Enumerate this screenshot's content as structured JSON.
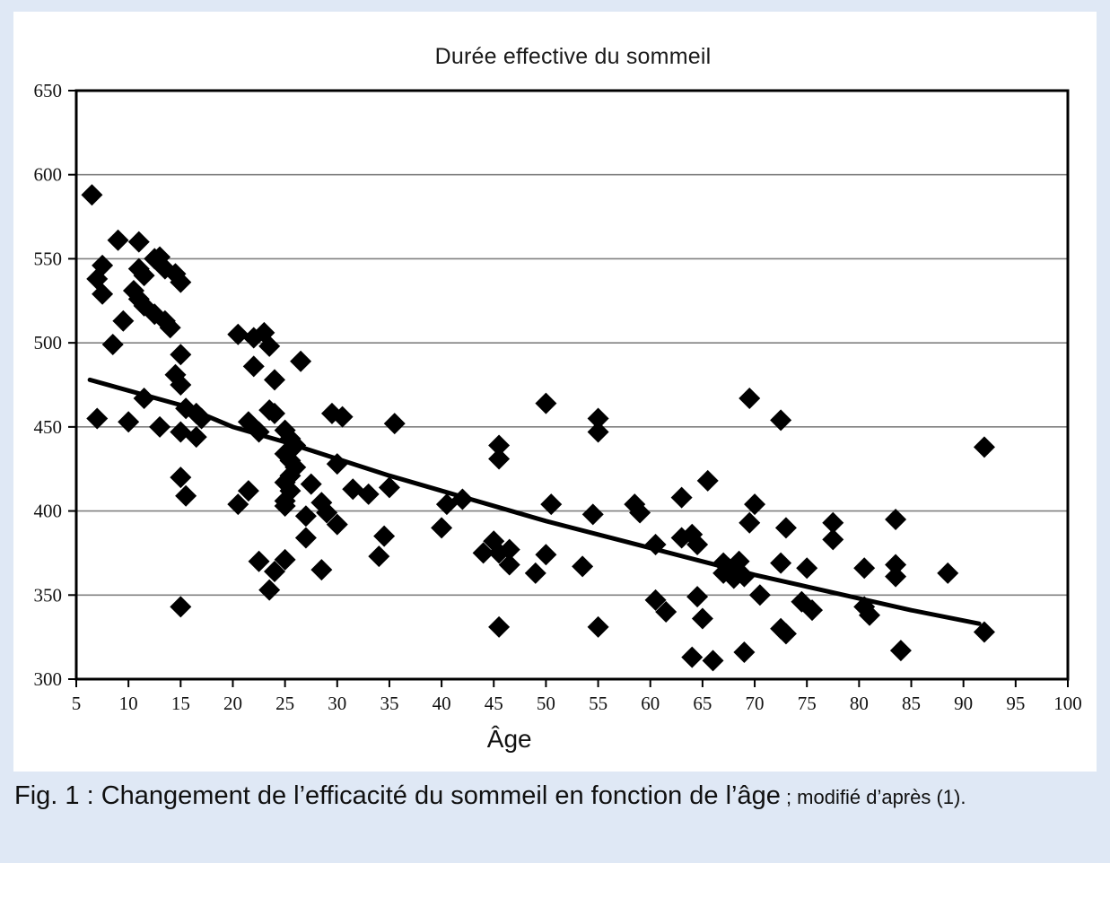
{
  "page": {
    "background_color": "#ffffff",
    "band_color": "#dfe8f5",
    "panel_color": "#ffffff"
  },
  "figure": {
    "title": "Durée effective du sommeil",
    "caption_main": "Fig. 1 : Changement de l’efficacité du sommeil en fonction de l’âge",
    "caption_suffix": " ; modifié d’après (1)."
  },
  "chart_data": {
    "type": "scatter",
    "title": "Durée effective du sommeil",
    "xlabel": "Âge",
    "ylabel": "",
    "xlim": [
      5,
      100
    ],
    "ylim": [
      300,
      650
    ],
    "x_ticks": [
      5,
      10,
      15,
      20,
      25,
      30,
      35,
      40,
      45,
      50,
      55,
      60,
      65,
      70,
      75,
      80,
      85,
      90,
      95,
      100
    ],
    "y_ticks": [
      300,
      350,
      400,
      450,
      500,
      550,
      600,
      650
    ],
    "grid": "horizontal-gridlines",
    "legend": "none",
    "marker": "diamond",
    "marker_color": "#000000",
    "grid_color": "#808080",
    "axis_color": "#000000",
    "points": [
      [
        6.5,
        588
      ],
      [
        7,
        455
      ],
      [
        7,
        538
      ],
      [
        7.5,
        546
      ],
      [
        7.5,
        529
      ],
      [
        8.5,
        499
      ],
      [
        9,
        561
      ],
      [
        9.5,
        513
      ],
      [
        10,
        453
      ],
      [
        10.5,
        531
      ],
      [
        11,
        560
      ],
      [
        11,
        544
      ],
      [
        11,
        526
      ],
      [
        11.5,
        540
      ],
      [
        11.5,
        522
      ],
      [
        11.5,
        467
      ],
      [
        12.5,
        550
      ],
      [
        12.5,
        517
      ],
      [
        13,
        551
      ],
      [
        13,
        450
      ],
      [
        13.5,
        544
      ],
      [
        13.5,
        513
      ],
      [
        14,
        509
      ],
      [
        14.5,
        541
      ],
      [
        14.5,
        481
      ],
      [
        15,
        536
      ],
      [
        15,
        493
      ],
      [
        15,
        475
      ],
      [
        15,
        447
      ],
      [
        15,
        420
      ],
      [
        15,
        343
      ],
      [
        15.5,
        409
      ],
      [
        15.5,
        461
      ],
      [
        16.5,
        458
      ],
      [
        17,
        455
      ],
      [
        16.5,
        444
      ],
      [
        20.5,
        505
      ],
      [
        22,
        503
      ],
      [
        23,
        506
      ],
      [
        23.5,
        498
      ],
      [
        22,
        486
      ],
      [
        24,
        478
      ],
      [
        23.5,
        460
      ],
      [
        21.5,
        453
      ],
      [
        22.5,
        447
      ],
      [
        24,
        458
      ],
      [
        20.5,
        404
      ],
      [
        21.5,
        412
      ],
      [
        22.5,
        370
      ],
      [
        23.5,
        353
      ],
      [
        24,
        364
      ],
      [
        25,
        448
      ],
      [
        25.5,
        443
      ],
      [
        26,
        439
      ],
      [
        25,
        434
      ],
      [
        25.5,
        430
      ],
      [
        26,
        426
      ],
      [
        25.5,
        421
      ],
      [
        25,
        417
      ],
      [
        25.5,
        412
      ],
      [
        25,
        406
      ],
      [
        25,
        403
      ],
      [
        26.5,
        489
      ],
      [
        27,
        397
      ],
      [
        27.5,
        416
      ],
      [
        25,
        371
      ],
      [
        27,
        384
      ],
      [
        28.5,
        405
      ],
      [
        29,
        399
      ],
      [
        28.5,
        365
      ],
      [
        29.5,
        458
      ],
      [
        30.5,
        456
      ],
      [
        30,
        428
      ],
      [
        30,
        392
      ],
      [
        31.5,
        413
      ],
      [
        33,
        410
      ],
      [
        35,
        414
      ],
      [
        35.5,
        452
      ],
      [
        34.5,
        385
      ],
      [
        34,
        373
      ],
      [
        40,
        390
      ],
      [
        40.5,
        404
      ],
      [
        42,
        407
      ],
      [
        44,
        375
      ],
      [
        45,
        382
      ],
      [
        45.5,
        375
      ],
      [
        46.5,
        377
      ],
      [
        46.5,
        368
      ],
      [
        45.5,
        439
      ],
      [
        45.5,
        431
      ],
      [
        45.5,
        331
      ],
      [
        49,
        363
      ],
      [
        50,
        374
      ],
      [
        50,
        464
      ],
      [
        50.5,
        404
      ],
      [
        53.5,
        367
      ],
      [
        54.5,
        398
      ],
      [
        55,
        455
      ],
      [
        55,
        447
      ],
      [
        55,
        331
      ],
      [
        58.5,
        404
      ],
      [
        59,
        399
      ],
      [
        60.5,
        380
      ],
      [
        60.5,
        347
      ],
      [
        61.5,
        340
      ],
      [
        63,
        408
      ],
      [
        63,
        384
      ],
      [
        64,
        386
      ],
      [
        64.5,
        380
      ],
      [
        64.5,
        349
      ],
      [
        65,
        336
      ],
      [
        64,
        313
      ],
      [
        66,
        311
      ],
      [
        65.5,
        418
      ],
      [
        67,
        369
      ],
      [
        67.5,
        366
      ],
      [
        68.5,
        370
      ],
      [
        67,
        363
      ],
      [
        68,
        360
      ],
      [
        69,
        361
      ],
      [
        69.5,
        393
      ],
      [
        69.5,
        467
      ],
      [
        69,
        316
      ],
      [
        70,
        404
      ],
      [
        70.5,
        350
      ],
      [
        72.5,
        454
      ],
      [
        72.5,
        369
      ],
      [
        73,
        390
      ],
      [
        72.5,
        330
      ],
      [
        73,
        327
      ],
      [
        74.5,
        346
      ],
      [
        75.5,
        341
      ],
      [
        75,
        366
      ],
      [
        77.5,
        393
      ],
      [
        77.5,
        383
      ],
      [
        80.5,
        366
      ],
      [
        80.5,
        343
      ],
      [
        81,
        338
      ],
      [
        83.5,
        368
      ],
      [
        83.5,
        361
      ],
      [
        83.5,
        395
      ],
      [
        84,
        317
      ],
      [
        88.5,
        363
      ],
      [
        92,
        438
      ],
      [
        92,
        328
      ]
    ],
    "trend_line": {
      "description": "decreasing curved trend line",
      "color": "#000000",
      "x_range": [
        6.3,
        91.5
      ],
      "samples": [
        [
          6.3,
          478
        ],
        [
          15,
          463
        ],
        [
          20,
          450
        ],
        [
          25,
          441
        ],
        [
          30,
          431
        ],
        [
          35,
          421
        ],
        [
          40,
          412
        ],
        [
          45,
          403
        ],
        [
          50,
          394
        ],
        [
          55,
          386
        ],
        [
          60,
          378
        ],
        [
          65,
          370
        ],
        [
          70,
          362
        ],
        [
          75,
          355
        ],
        [
          80,
          348
        ],
        [
          85,
          341
        ],
        [
          91.5,
          333
        ]
      ]
    }
  }
}
